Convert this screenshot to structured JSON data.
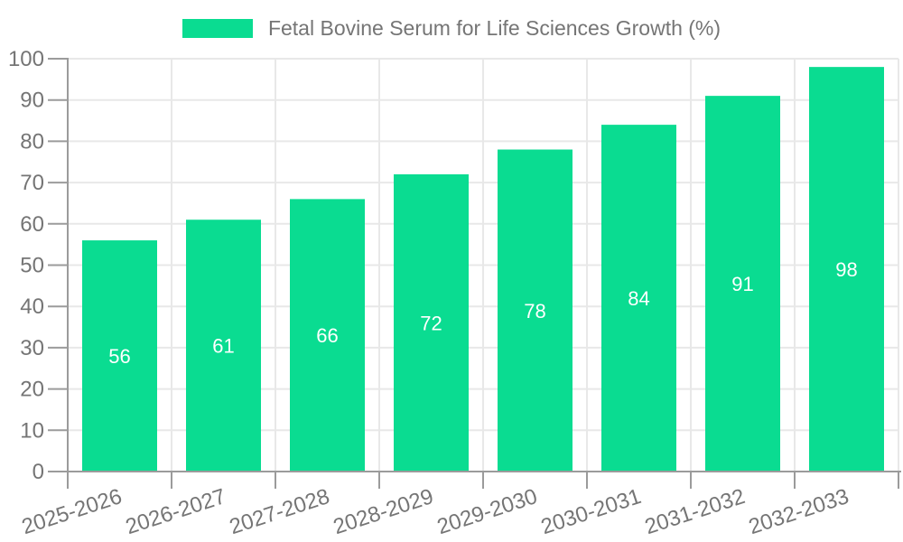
{
  "legend": {
    "label": "Fetal Bovine Serum for Life Sciences Growth (%)"
  },
  "chart_data": {
    "type": "bar",
    "title": "Fetal Bovine Serum for Life Sciences Growth (%)",
    "categories": [
      "2025-2026",
      "2026-2027",
      "2027-2028",
      "2028-2029",
      "2029-2030",
      "2030-2031",
      "2031-2032",
      "2032-2033"
    ],
    "values": [
      56,
      61,
      66,
      72,
      78,
      84,
      91,
      98
    ],
    "xlabel": "",
    "ylabel": "",
    "ylim": [
      0,
      100
    ],
    "ytick_step": 10,
    "grid": true,
    "legend_position": "top-center",
    "value_label_position": "inside-center",
    "colors": {
      "bar": "#0adc91",
      "value_label": "#ffffff",
      "axis_text": "#757575",
      "axis_line": "#9b9b9b",
      "grid_line": "#e8e8e8",
      "background": "#ffffff"
    }
  }
}
